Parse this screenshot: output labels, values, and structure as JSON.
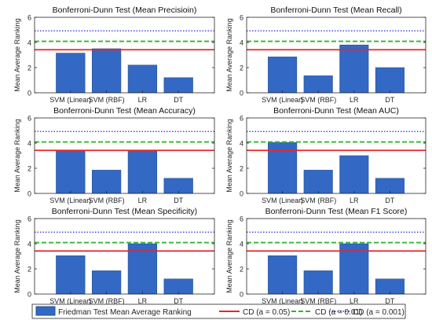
{
  "colors": {
    "bar": "#3468c5",
    "bar_edge": "#24508f",
    "cd_005": "#e8262a",
    "cd_001": "#2fb72f",
    "cd_0001": "#2a2ae0",
    "axis": "#262626"
  },
  "legend": {
    "placement": "bottom",
    "items": [
      {
        "label": "Friedman Test Mean Average Ranking",
        "kind": "bar"
      },
      {
        "label": "CD (a = 0.05)",
        "kind": "solid-line"
      },
      {
        "label": "CD (a = 0.01)",
        "kind": "dashed-line"
      },
      {
        "label": "CD (a = 0.001)",
        "kind": "dotted-line"
      }
    ]
  },
  "chart_data": [
    {
      "type": "bar",
      "title": "Bonferroni-Dunn Test (Mean Precisioin)",
      "ylabel": "Mean Average Ranking",
      "categories": [
        "SVM (Linear)",
        "SVM (RBF)",
        "LR",
        "DT"
      ],
      "values": [
        3.15,
        3.5,
        2.2,
        1.2
      ],
      "ylim": [
        0,
        6
      ],
      "yticks": [
        0,
        2,
        4,
        6
      ],
      "reference_lines": [
        {
          "name": "CD (a = 0.05)",
          "value": 3.42
        },
        {
          "name": "CD (a = 0.01)",
          "value": 4.09
        },
        {
          "name": "CD (a = 0.001)",
          "value": 4.92
        }
      ]
    },
    {
      "type": "bar",
      "title": "Bonferroni-Dunn Test (Mean Recall)",
      "ylabel": "Mean Average Ranking",
      "categories": [
        "SVM (Linear)",
        "SVM (RBF)",
        "LR",
        "DT"
      ],
      "values": [
        2.85,
        1.35,
        3.8,
        2.0
      ],
      "ylim": [
        0,
        6
      ],
      "yticks": [
        0,
        2,
        4,
        6
      ],
      "reference_lines": [
        {
          "name": "CD (a = 0.05)",
          "value": 3.42
        },
        {
          "name": "CD (a = 0.01)",
          "value": 4.09
        },
        {
          "name": "CD (a = 0.001)",
          "value": 4.92
        }
      ]
    },
    {
      "type": "bar",
      "title": "Bonferroni-Dunn Test (Mean Accuracy)",
      "ylabel": "Mean Average Ranking",
      "categories": [
        "SVM (Linear)",
        "SVM (RBF)",
        "LR",
        "DT"
      ],
      "values": [
        3.45,
        1.85,
        3.45,
        1.2
      ],
      "ylim": [
        0,
        6
      ],
      "yticks": [
        0,
        2,
        4,
        6
      ],
      "reference_lines": [
        {
          "name": "CD (a = 0.05)",
          "value": 3.42
        },
        {
          "name": "CD (a = 0.01)",
          "value": 4.09
        },
        {
          "name": "CD (a = 0.001)",
          "value": 4.92
        }
      ]
    },
    {
      "type": "bar",
      "title": "Bonferroni-Dunn Test (Mean AUC)",
      "ylabel": "Mean Average Ranking",
      "categories": [
        "SVM (Linear)",
        "SVM (RBF)",
        "LR",
        "DT"
      ],
      "values": [
        4.05,
        1.85,
        3.0,
        1.2
      ],
      "ylim": [
        0,
        6
      ],
      "yticks": [
        0,
        2,
        4,
        6
      ],
      "reference_lines": [
        {
          "name": "CD (a = 0.05)",
          "value": 3.42
        },
        {
          "name": "CD (a = 0.01)",
          "value": 4.09
        },
        {
          "name": "CD (a = 0.001)",
          "value": 4.92
        }
      ]
    },
    {
      "type": "bar",
      "title": "Bonferroni-Dunn Test (Mean Specificity)",
      "ylabel": "Mean Average Ranking",
      "categories": [
        "SVM (Linear)",
        "SVM (RBF)",
        "LR",
        "DT"
      ],
      "values": [
        3.05,
        1.85,
        4.0,
        1.2
      ],
      "ylim": [
        0,
        6
      ],
      "yticks": [
        0,
        2,
        4,
        6
      ],
      "reference_lines": [
        {
          "name": "CD (a = 0.05)",
          "value": 3.42
        },
        {
          "name": "CD (a = 0.01)",
          "value": 4.09
        },
        {
          "name": "CD (a = 0.001)",
          "value": 4.92
        }
      ]
    },
    {
      "type": "bar",
      "title": "Bonferroni-Dunn Test (Mean F1 Score)",
      "ylabel": "Mean Average Ranking",
      "categories": [
        "SVM (Linear)",
        "SVM (RBF)",
        "LR",
        "DT"
      ],
      "values": [
        3.05,
        1.85,
        4.0,
        1.2
      ],
      "ylim": [
        0,
        6
      ],
      "yticks": [
        0,
        2,
        4,
        6
      ],
      "reference_lines": [
        {
          "name": "CD (a = 0.05)",
          "value": 3.42
        },
        {
          "name": "CD (a = 0.01)",
          "value": 4.09
        },
        {
          "name": "CD (a = 0.001)",
          "value": 4.92
        }
      ]
    }
  ]
}
